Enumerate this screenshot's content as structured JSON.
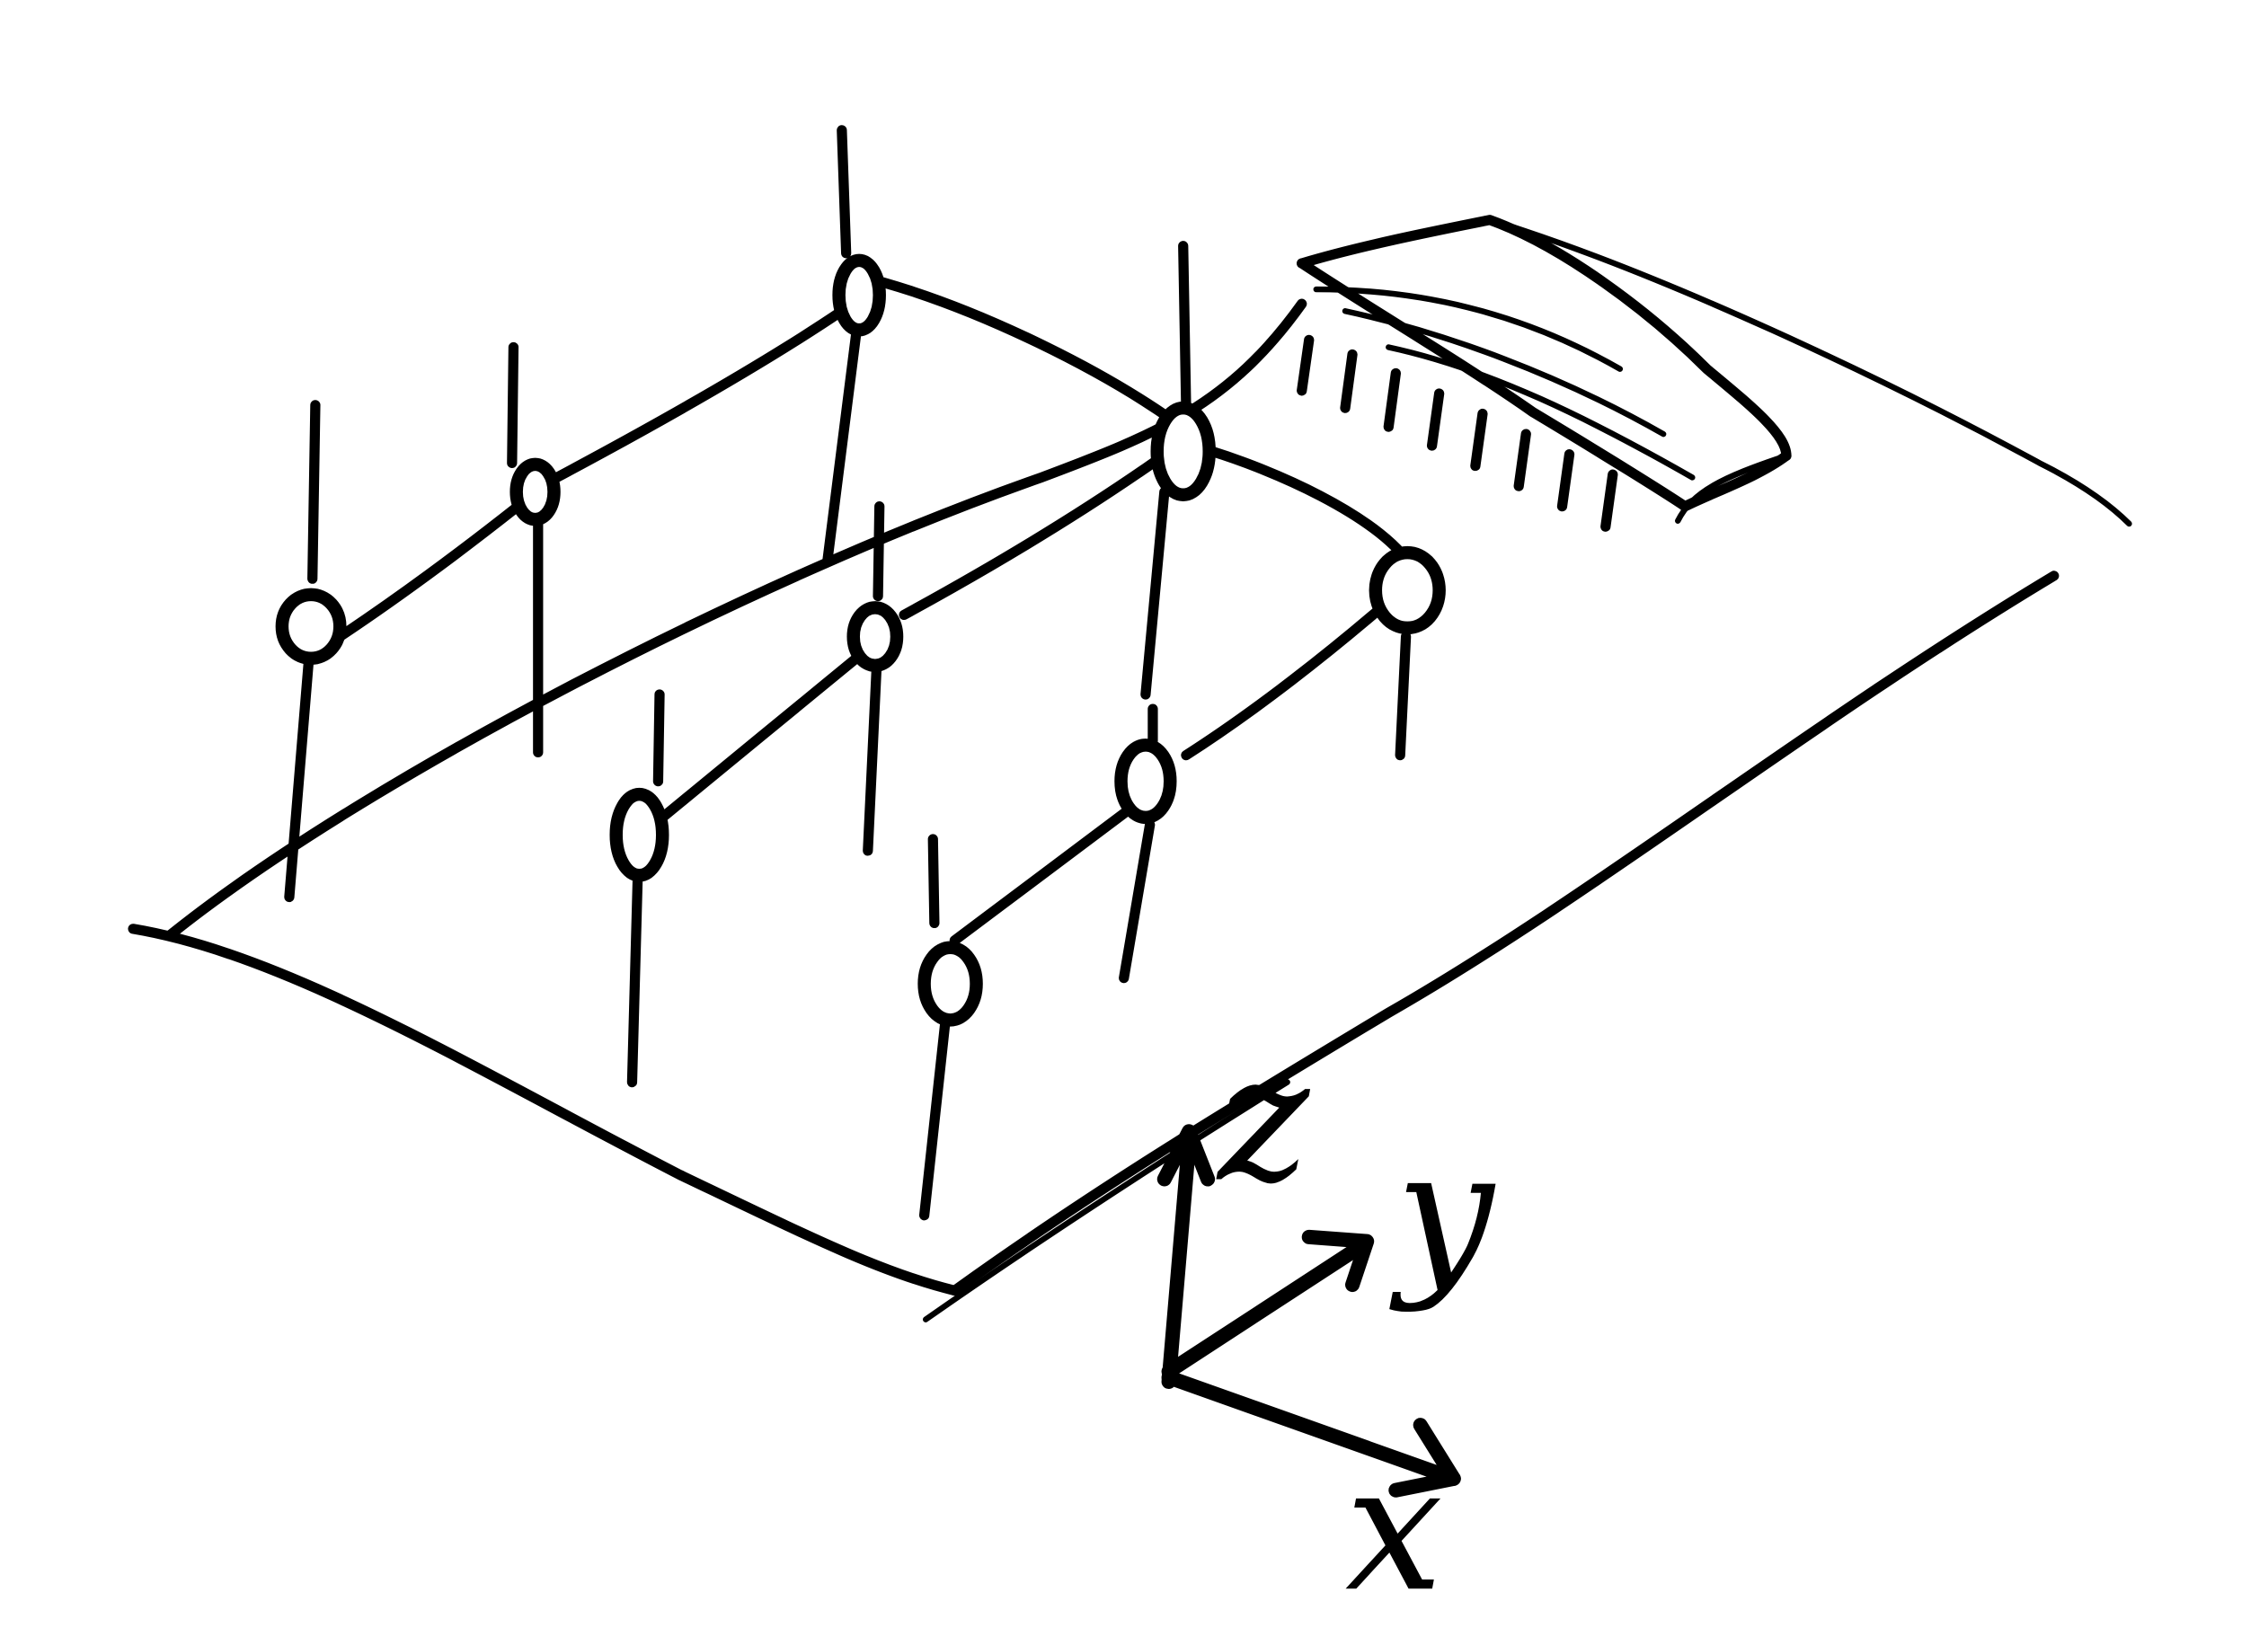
{
  "diagram": {
    "axes": [
      {
        "label": "z",
        "direction": "up"
      },
      {
        "label": "y",
        "direction": "depth"
      },
      {
        "label": "x",
        "direction": "right"
      }
    ],
    "rows": [
      {
        "name": "back-row",
        "nodes": 3
      },
      {
        "name": "middle-row",
        "nodes": 3
      },
      {
        "name": "front-row",
        "nodes": 3
      }
    ],
    "objects": [
      "base-plate",
      "chip",
      "mount-poles",
      "connecting-wires",
      "nodes"
    ],
    "ink_color": "#000000",
    "background": "#ffffff"
  }
}
